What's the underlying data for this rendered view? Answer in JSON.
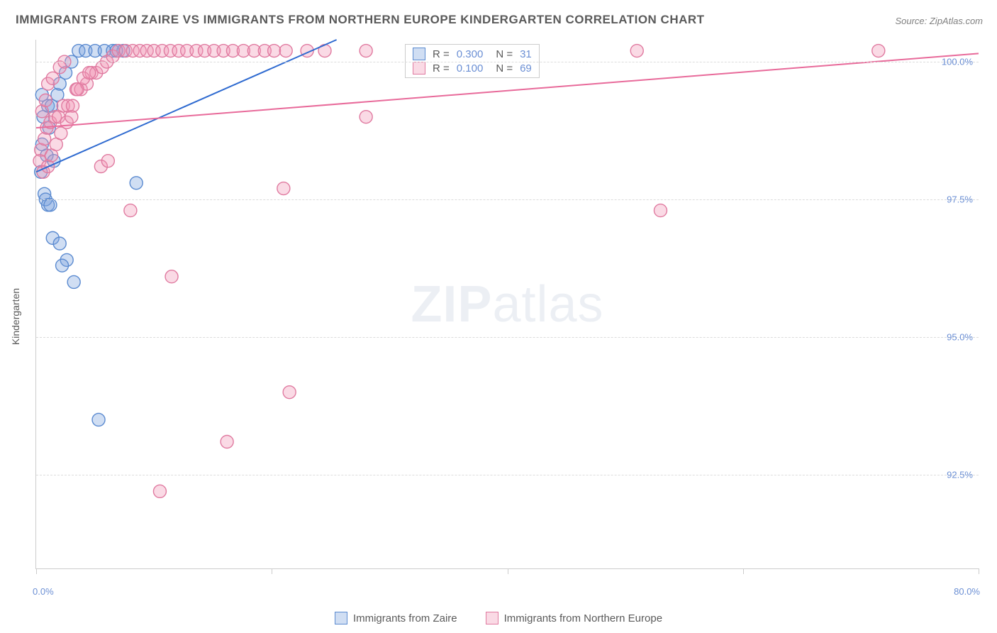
{
  "title": "IMMIGRANTS FROM ZAIRE VS IMMIGRANTS FROM NORTHERN EUROPE KINDERGARTEN CORRELATION CHART",
  "source": "Source: ZipAtlas.com",
  "watermark_a": "ZIP",
  "watermark_b": "atlas",
  "y_axis_title": "Kindergarten",
  "chart": {
    "type": "scatter",
    "xlim": [
      0,
      80
    ],
    "ylim": [
      90.8,
      100.4
    ],
    "y_ticks": [
      92.5,
      95.0,
      97.5,
      100.0
    ],
    "y_tick_labels": [
      "92.5%",
      "95.0%",
      "97.5%",
      "100.0%"
    ],
    "x_ticks": [
      0,
      20,
      40,
      60,
      80
    ],
    "x_min_label": "0.0%",
    "x_max_label": "80.0%",
    "grid_color": "#dcdcdc",
    "axis_color": "#cccccc",
    "label_color": "#6b8fd4",
    "point_radius": 9,
    "point_stroke_width": 1.4,
    "line_width": 2,
    "series": [
      {
        "name": "Immigrants from Zaire",
        "fill": "rgba(120,160,220,0.35)",
        "stroke": "#5a8ad0",
        "line_color": "#2e6ad0",
        "R": "0.300",
        "N": "31",
        "trend": {
          "x1": 0,
          "y1": 98.0,
          "x2": 25.5,
          "y2": 100.4
        },
        "points": [
          [
            0.4,
            98.0
          ],
          [
            0.7,
            97.6
          ],
          [
            0.8,
            97.5
          ],
          [
            1.0,
            97.4
          ],
          [
            1.2,
            97.4
          ],
          [
            0.5,
            98.5
          ],
          [
            0.9,
            98.3
          ],
          [
            1.5,
            98.2
          ],
          [
            0.6,
            99.0
          ],
          [
            1.0,
            99.2
          ],
          [
            1.3,
            99.2
          ],
          [
            1.8,
            99.4
          ],
          [
            2.0,
            99.6
          ],
          [
            2.5,
            99.8
          ],
          [
            3.0,
            100.0
          ],
          [
            3.6,
            100.2
          ],
          [
            4.2,
            100.2
          ],
          [
            5.0,
            100.2
          ],
          [
            5.8,
            100.2
          ],
          [
            6.5,
            100.2
          ],
          [
            7.4,
            100.2
          ],
          [
            8.5,
            97.8
          ],
          [
            1.4,
            96.8
          ],
          [
            2.0,
            96.7
          ],
          [
            2.6,
            96.4
          ],
          [
            2.2,
            96.3
          ],
          [
            3.2,
            96.0
          ],
          [
            5.3,
            93.5
          ],
          [
            6.8,
            100.2
          ],
          [
            1.1,
            98.8
          ],
          [
            0.5,
            99.4
          ]
        ]
      },
      {
        "name": "Immigrants from Northern Europe",
        "fill": "rgba(240,150,180,0.35)",
        "stroke": "#e07aa0",
        "line_color": "#e86a9a",
        "R": "0.100",
        "N": "69",
        "trend": {
          "x1": 0,
          "y1": 98.8,
          "x2": 80,
          "y2": 100.15
        },
        "points": [
          [
            0.4,
            98.4
          ],
          [
            0.7,
            98.6
          ],
          [
            0.9,
            98.8
          ],
          [
            1.2,
            98.9
          ],
          [
            1.6,
            99.0
          ],
          [
            1.9,
            99.0
          ],
          [
            2.3,
            99.2
          ],
          [
            2.7,
            99.2
          ],
          [
            3.1,
            99.2
          ],
          [
            3.4,
            99.5
          ],
          [
            3.8,
            99.5
          ],
          [
            4.3,
            99.6
          ],
          [
            4.7,
            99.8
          ],
          [
            5.1,
            99.8
          ],
          [
            5.6,
            99.9
          ],
          [
            6.0,
            100.0
          ],
          [
            6.5,
            100.1
          ],
          [
            7.0,
            100.2
          ],
          [
            7.6,
            100.2
          ],
          [
            8.2,
            100.2
          ],
          [
            8.8,
            100.2
          ],
          [
            9.4,
            100.2
          ],
          [
            10.0,
            100.2
          ],
          [
            10.7,
            100.2
          ],
          [
            11.4,
            100.2
          ],
          [
            12.1,
            100.2
          ],
          [
            12.8,
            100.2
          ],
          [
            13.6,
            100.2
          ],
          [
            14.3,
            100.2
          ],
          [
            15.1,
            100.2
          ],
          [
            15.9,
            100.2
          ],
          [
            16.7,
            100.2
          ],
          [
            17.6,
            100.2
          ],
          [
            18.5,
            100.2
          ],
          [
            19.4,
            100.2
          ],
          [
            20.2,
            100.2
          ],
          [
            21.2,
            100.2
          ],
          [
            23.0,
            100.2
          ],
          [
            24.5,
            100.2
          ],
          [
            28.0,
            100.2
          ],
          [
            28.0,
            99.0
          ],
          [
            1.0,
            99.6
          ],
          [
            1.4,
            99.7
          ],
          [
            2.0,
            99.9
          ],
          [
            2.4,
            100.0
          ],
          [
            0.5,
            99.1
          ],
          [
            0.8,
            99.3
          ],
          [
            5.5,
            98.1
          ],
          [
            6.1,
            98.2
          ],
          [
            8.0,
            97.3
          ],
          [
            10.5,
            92.2
          ],
          [
            11.5,
            96.1
          ],
          [
            16.2,
            93.1
          ],
          [
            21.0,
            97.7
          ],
          [
            21.5,
            94.0
          ],
          [
            51.0,
            100.2
          ],
          [
            53.0,
            97.3
          ],
          [
            71.5,
            100.2
          ],
          [
            0.3,
            98.2
          ],
          [
            0.6,
            98.0
          ],
          [
            1.0,
            98.1
          ],
          [
            1.3,
            98.3
          ],
          [
            1.7,
            98.5
          ],
          [
            2.1,
            98.7
          ],
          [
            2.6,
            98.9
          ],
          [
            3.0,
            99.0
          ],
          [
            3.5,
            99.5
          ],
          [
            4.0,
            99.7
          ],
          [
            4.5,
            99.8
          ]
        ]
      }
    ]
  },
  "legend_top": {
    "r_label": "R =",
    "n_label": "N ="
  },
  "legend_bottom": {
    "s0": "Immigrants from Zaire",
    "s1": "Immigrants from Northern Europe"
  }
}
